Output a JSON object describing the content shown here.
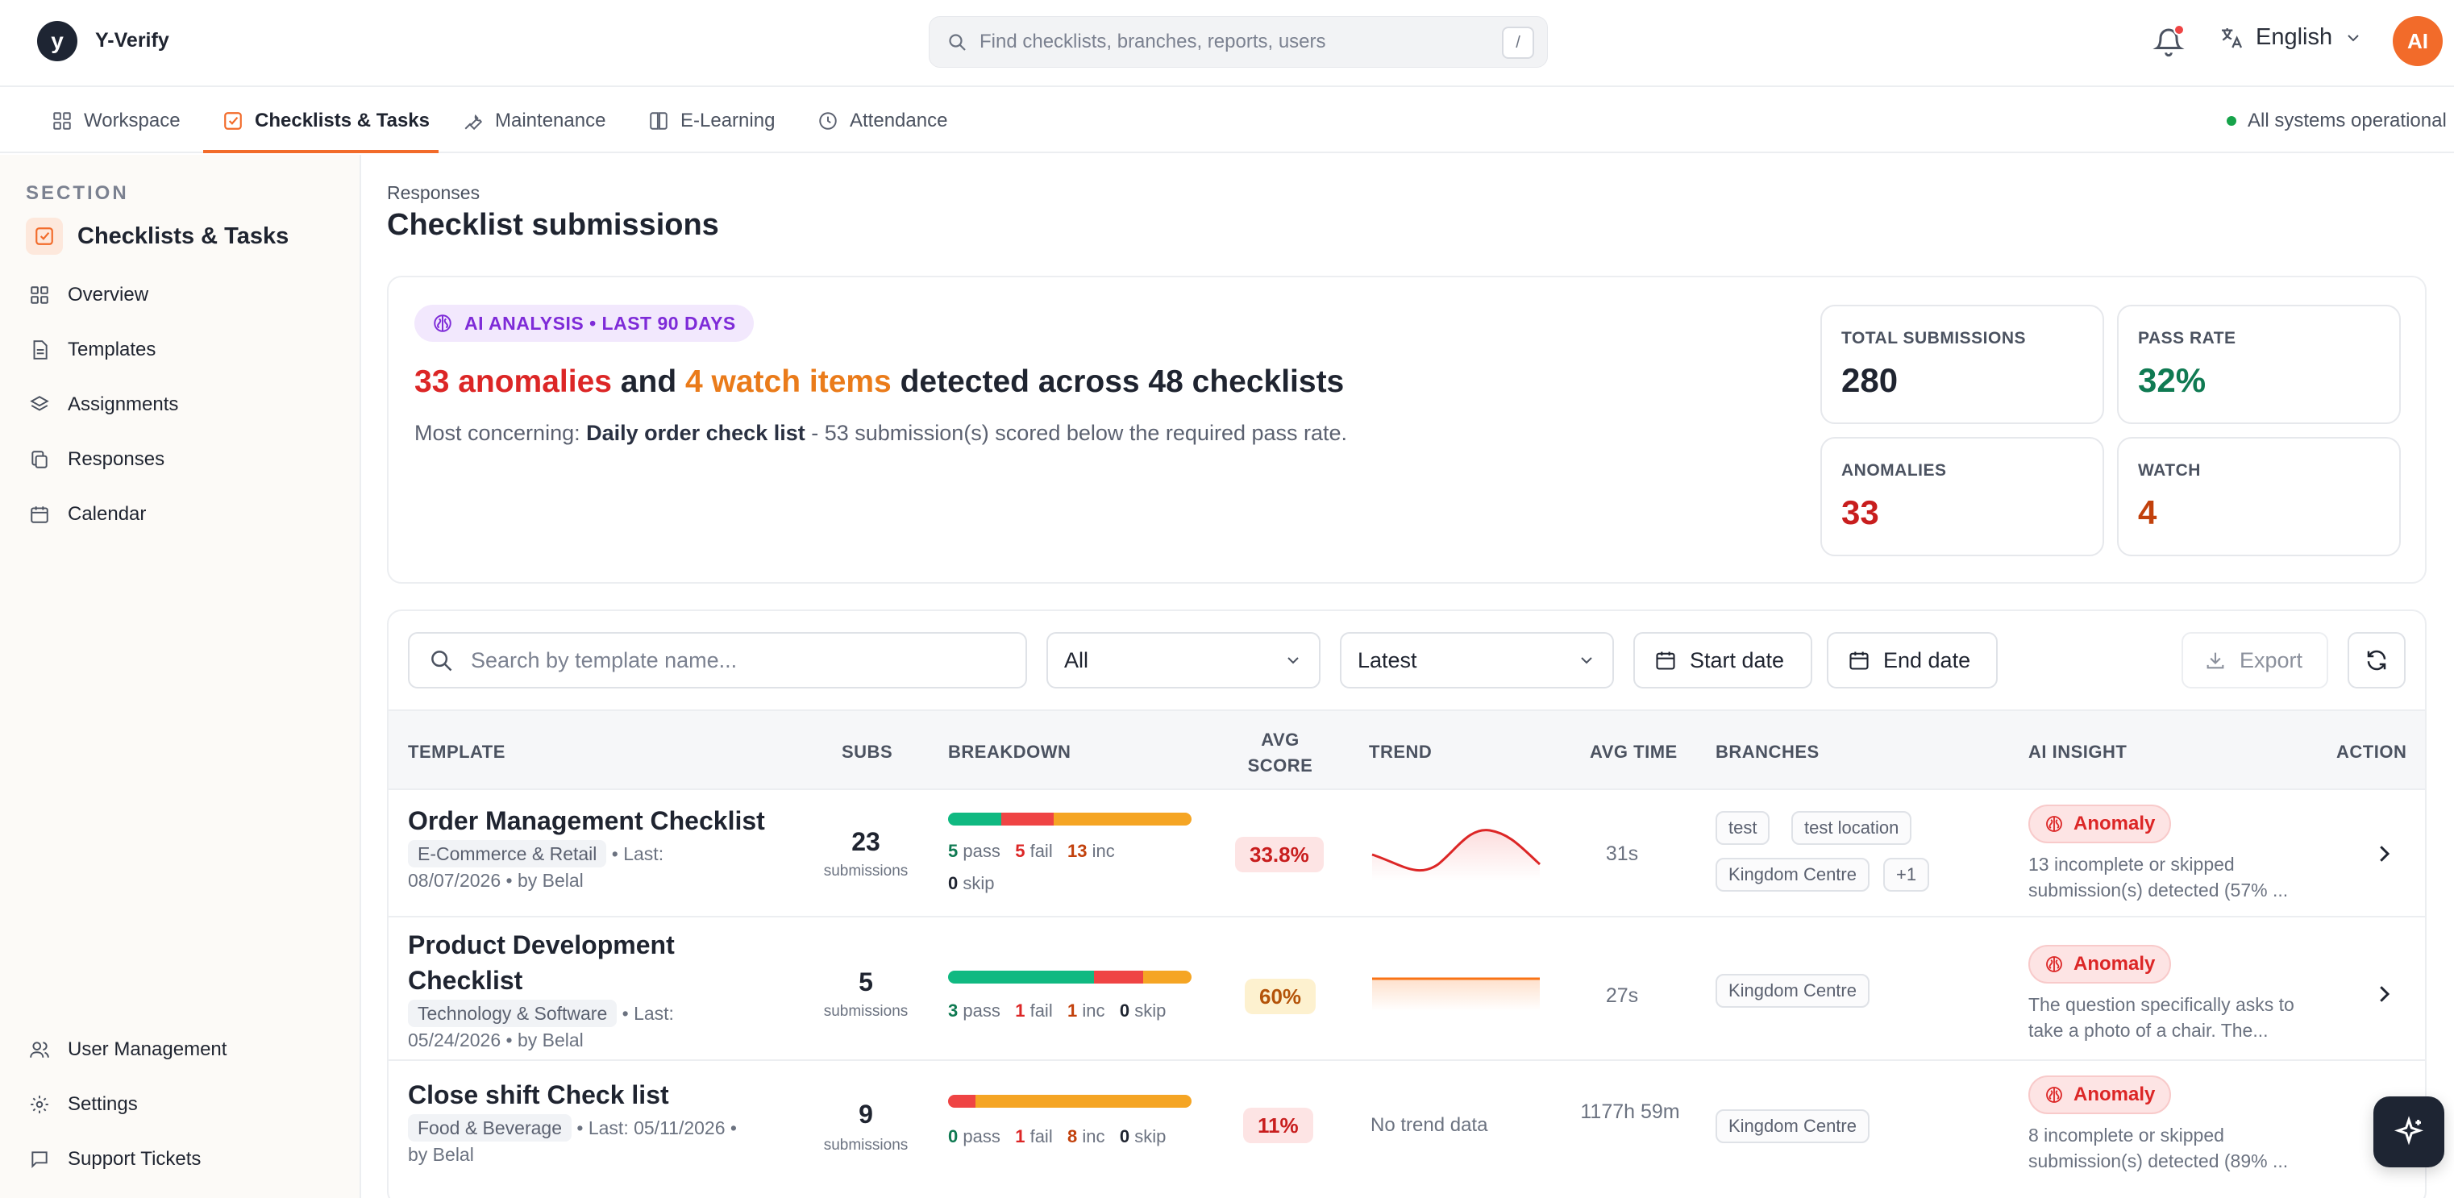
{
  "app": {
    "brand": "Y-Verify",
    "logo_letter": "y"
  },
  "search": {
    "placeholder": "Find checklists, branches, reports, users",
    "shortcut": "/"
  },
  "header": {
    "language": "English",
    "avatar_initials": "AI"
  },
  "nav": {
    "tabs": [
      {
        "label": "Workspace",
        "icon": "grid-icon"
      },
      {
        "label": "Checklists & Tasks",
        "icon": "checkbox-icon",
        "active": true
      },
      {
        "label": "Maintenance",
        "icon": "wrench-icon"
      },
      {
        "label": "E-Learning",
        "icon": "book-icon"
      },
      {
        "label": "Attendance",
        "icon": "clock-icon"
      }
    ],
    "status": "All systems operational"
  },
  "sidebar": {
    "section_label": "SECTION",
    "section_title": "Checklists & Tasks",
    "items": [
      {
        "label": "Overview",
        "icon": "grid-icon"
      },
      {
        "label": "Templates",
        "icon": "document-icon"
      },
      {
        "label": "Assignments",
        "icon": "layers-icon"
      },
      {
        "label": "Responses",
        "icon": "copy-icon"
      },
      {
        "label": "Calendar",
        "icon": "calendar-icon"
      }
    ],
    "bottom_items": [
      {
        "label": "User Management",
        "icon": "users-icon"
      },
      {
        "label": "Settings",
        "icon": "gear-icon"
      },
      {
        "label": "Support Tickets",
        "icon": "chat-icon"
      }
    ]
  },
  "page": {
    "breadcrumb": "Responses",
    "title": "Checklist submissions"
  },
  "ai": {
    "pill": "AI ANALYSIS • LAST 90 DAYS",
    "anomalies_text": "33 anomalies",
    "and_text": " and ",
    "watch_text": "4 watch items",
    "rest_text": " detected across 48 checklists",
    "concern_label": "Most concerning: ",
    "concern_name": "Daily order check list",
    "concern_rest": " - 53 submission(s) scored below the required pass rate."
  },
  "stats": {
    "total": {
      "label": "TOTAL SUBMISSIONS",
      "value": "280"
    },
    "pass_rate": {
      "label": "PASS RATE",
      "value": "32%"
    },
    "anomalies": {
      "label": "ANOMALIES",
      "value": "33"
    },
    "watch": {
      "label": "WATCH",
      "value": "4"
    }
  },
  "filters": {
    "search_placeholder": "Search by template name...",
    "status_select": "All",
    "sort_select": "Latest",
    "start_date": "Start date",
    "end_date": "End date",
    "export": "Export"
  },
  "table": {
    "headers": {
      "template": "TEMPLATE",
      "subs": "SUBS",
      "breakdown": "BREAKDOWN",
      "avg_score_1": "AVG",
      "avg_score_2": "SCORE",
      "trend": "TREND",
      "avg_time": "AVG TIME",
      "branches": "BRANCHES",
      "ai_insight": "AI INSIGHT",
      "action": "ACTION"
    },
    "rows": [
      {
        "name": "Order Management Checklist",
        "category": "E-Commerce & Retail",
        "last_line1": "• Last:",
        "last_line2": "08/07/2026 • by Belal",
        "subs": "23",
        "subs_label": "submissions",
        "pass": "5",
        "fail": "5",
        "inc": "13",
        "skip": "0",
        "pass_lbl": "pass",
        "fail_lbl": "fail",
        "inc_lbl": "inc",
        "skip_lbl": "skip",
        "score": "33.8%",
        "score_bg": "#fde4e4",
        "score_color": "#c81e1e",
        "trend": [
          0.55,
          0.65,
          0.45,
          0.9,
          0.35
        ],
        "avg_time": "31s",
        "branches": [
          "test",
          "test location",
          "Kingdom Centre",
          "+1"
        ],
        "insight_badge": "Anomaly",
        "insight": "13 incomplete or skipped submission(s) detected (57% ..."
      },
      {
        "name": "Product Development Checklist",
        "category": "Technology & Software",
        "last_line1": "• Last:",
        "last_line2": "05/24/2026 • by Belal",
        "subs": "5",
        "subs_label": "submissions",
        "pass": "3",
        "fail": "1",
        "inc": "1",
        "skip": "0",
        "pass_lbl": "pass",
        "fail_lbl": "fail",
        "inc_lbl": "inc",
        "skip_lbl": "skip",
        "score": "60%",
        "score_bg": "#fdf1cf",
        "score_color": "#b45309",
        "trend": [
          0.6,
          0.6
        ],
        "avg_time": "27s",
        "branches": [
          "Kingdom Centre"
        ],
        "insight_badge": "Anomaly",
        "insight": "The question specifically asks to take a photo of a chair. The..."
      },
      {
        "name": "Close shift Check list",
        "category": "Food & Beverage",
        "last_line1": "• Last: 05/11/2026 •",
        "last_line2": "by Belal",
        "subs": "9",
        "subs_label": "submissions",
        "pass": "0",
        "fail": "1",
        "inc": "8",
        "skip": "0",
        "pass_lbl": "pass",
        "fail_lbl": "fail",
        "inc_lbl": "inc",
        "skip_lbl": "skip",
        "score": "11%",
        "score_bg": "#fde4e4",
        "score_color": "#c81e1e",
        "trend_text": "No trend data",
        "avg_time": "1177h 59m",
        "branches": [
          "Kingdom Centre"
        ],
        "insight_badge": "Anomaly",
        "insight": "8 incomplete or skipped submission(s) detected (89% ..."
      }
    ]
  },
  "colors": {
    "accent": "#f26b2a",
    "pass": "#10b981",
    "fail": "#ef4444",
    "inc": "#f5a524"
  }
}
